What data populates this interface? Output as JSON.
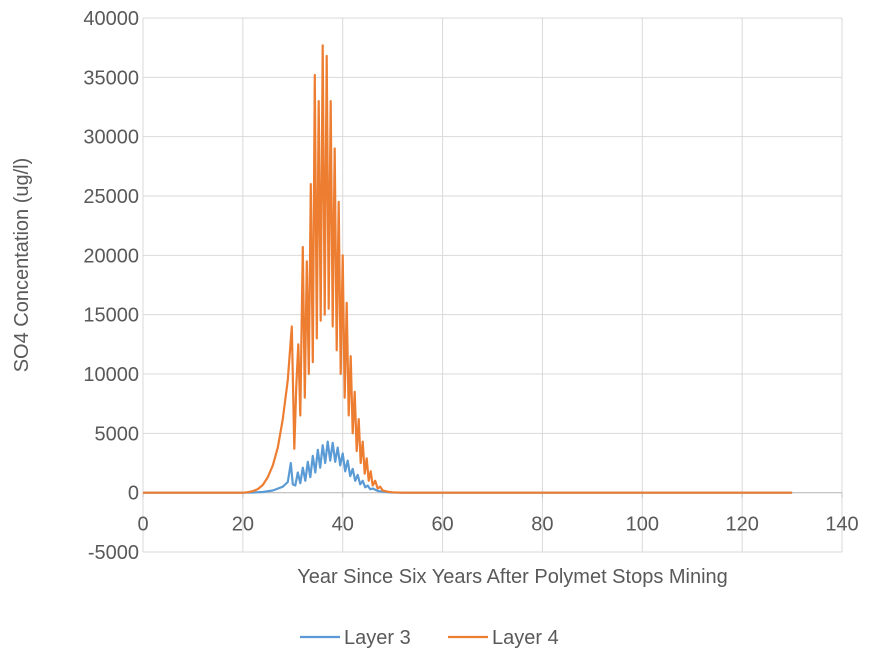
{
  "chart_data": {
    "type": "line",
    "title": "",
    "xlabel": "Year Since Six Years After Polymet Stops Mining",
    "ylabel": "SO4 Concentation  (ug/l)",
    "xlim": [
      0,
      140
    ],
    "ylim": [
      -5000,
      40000
    ],
    "x_ticks": [
      0,
      20,
      40,
      60,
      80,
      100,
      120,
      140
    ],
    "y_ticks": [
      -5000,
      0,
      5000,
      10000,
      15000,
      20000,
      25000,
      30000,
      35000,
      40000
    ],
    "x_tick_labels": [
      "0",
      "20",
      "40",
      "60",
      "80",
      "100",
      "120",
      "140"
    ],
    "y_tick_labels": [
      "-5000",
      "0",
      "5000",
      "10000",
      "15000",
      "20000",
      "25000",
      "30000",
      "35000",
      "40000"
    ],
    "grid": "vertical and horizontal major gridlines",
    "legend_position": "bottom",
    "series": [
      {
        "name": "Layer 3",
        "color": "#5B9BD5",
        "points": [
          [
            0,
            0
          ],
          [
            20,
            0
          ],
          [
            22,
            15
          ],
          [
            24,
            60
          ],
          [
            26,
            180
          ],
          [
            28,
            500
          ],
          [
            29,
            900
          ],
          [
            29.6,
            2500
          ],
          [
            30,
            700
          ],
          [
            30.5,
            600
          ],
          [
            31,
            1700
          ],
          [
            31.5,
            800
          ],
          [
            32,
            2100
          ],
          [
            32.5,
            1000
          ],
          [
            33,
            2600
          ],
          [
            33.5,
            1300
          ],
          [
            34,
            3100
          ],
          [
            34.5,
            1700
          ],
          [
            35,
            3600
          ],
          [
            35.5,
            2100
          ],
          [
            36,
            4000
          ],
          [
            36.5,
            2500
          ],
          [
            37,
            4300
          ],
          [
            37.5,
            2700
          ],
          [
            38,
            4200
          ],
          [
            38.5,
            2600
          ],
          [
            39,
            3800
          ],
          [
            39.5,
            2300
          ],
          [
            40,
            3300
          ],
          [
            40.5,
            1800
          ],
          [
            41,
            2700
          ],
          [
            41.5,
            1400
          ],
          [
            42,
            2000
          ],
          [
            42.5,
            1000
          ],
          [
            43,
            1500
          ],
          [
            43.5,
            700
          ],
          [
            44,
            1000
          ],
          [
            44.5,
            450
          ],
          [
            45,
            600
          ],
          [
            45.5,
            280
          ],
          [
            46,
            350
          ],
          [
            47,
            150
          ],
          [
            48,
            80
          ],
          [
            49,
            40
          ],
          [
            50,
            15
          ],
          [
            52,
            0
          ],
          [
            130,
            0
          ]
        ]
      },
      {
        "name": "Layer 4",
        "color": "#ED7D31",
        "points": [
          [
            0,
            0
          ],
          [
            20,
            0
          ],
          [
            21,
            40
          ],
          [
            22,
            120
          ],
          [
            23,
            300
          ],
          [
            24,
            650
          ],
          [
            25,
            1300
          ],
          [
            26,
            2300
          ],
          [
            27,
            3800
          ],
          [
            28,
            6200
          ],
          [
            29,
            9500
          ],
          [
            29.8,
            14000
          ],
          [
            30.3,
            3700
          ],
          [
            30.7,
            9000
          ],
          [
            31.1,
            12500
          ],
          [
            31.5,
            6500
          ],
          [
            32,
            20700
          ],
          [
            32.4,
            8000
          ],
          [
            32.8,
            19500
          ],
          [
            33.2,
            10000
          ],
          [
            33.6,
            26000
          ],
          [
            34,
            11000
          ],
          [
            34.4,
            35200
          ],
          [
            34.8,
            13000
          ],
          [
            35.2,
            33000
          ],
          [
            35.6,
            14500
          ],
          [
            36,
            37700
          ],
          [
            36.4,
            15000
          ],
          [
            36.8,
            36800
          ],
          [
            37.2,
            15500
          ],
          [
            37.6,
            33000
          ],
          [
            38,
            14000
          ],
          [
            38.4,
            29000
          ],
          [
            38.8,
            12000
          ],
          [
            39.2,
            24500
          ],
          [
            39.6,
            10000
          ],
          [
            40,
            20000
          ],
          [
            40.4,
            8000
          ],
          [
            40.8,
            16000
          ],
          [
            41.2,
            6500
          ],
          [
            41.6,
            11500
          ],
          [
            42,
            5000
          ],
          [
            42.4,
            8500
          ],
          [
            42.8,
            3500
          ],
          [
            43.2,
            6200
          ],
          [
            43.6,
            2500
          ],
          [
            44,
            4300
          ],
          [
            44.4,
            1600
          ],
          [
            44.8,
            2900
          ],
          [
            45.2,
            1000
          ],
          [
            45.6,
            1800
          ],
          [
            46,
            600
          ],
          [
            46.5,
            1000
          ],
          [
            47,
            350
          ],
          [
            47.5,
            500
          ],
          [
            48,
            180
          ],
          [
            49,
            80
          ],
          [
            50,
            30
          ],
          [
            52,
            0
          ],
          [
            130,
            0
          ]
        ]
      }
    ]
  }
}
